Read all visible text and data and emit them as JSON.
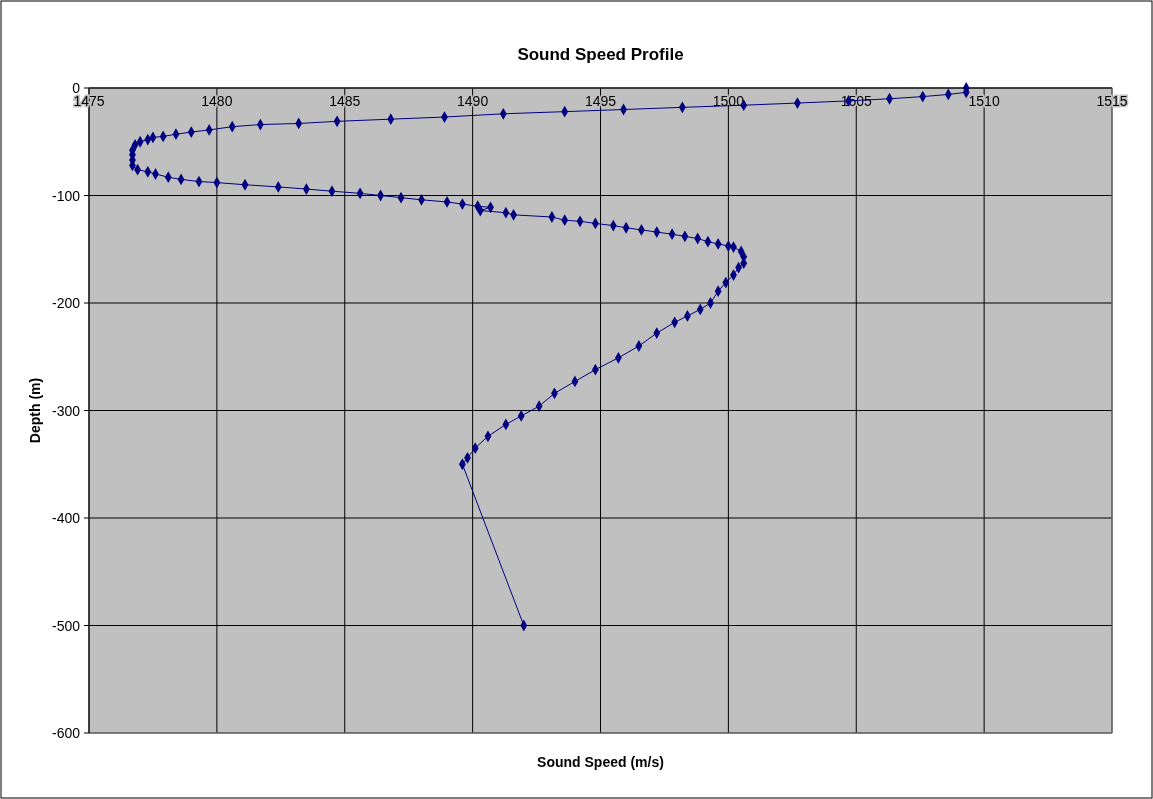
{
  "chart_data": {
    "type": "line",
    "title": "Sound Speed Profile",
    "xlabel": "Sound Speed (m/s)",
    "ylabel": "Depth (m)",
    "xlim": [
      1475,
      1515
    ],
    "xticks": [
      1475,
      1480,
      1485,
      1490,
      1495,
      1500,
      1505,
      1510,
      1515
    ],
    "ylim": [
      -600,
      0
    ],
    "yticks": [
      -600,
      -500,
      -400,
      -300,
      -200,
      -100,
      0
    ],
    "grid": true,
    "marker": "diamond",
    "line_style": "solid",
    "series": [
      {
        "color": "#000080",
        "x": [
          1509.3,
          1509.3,
          1508.6,
          1507.6,
          1506.3,
          1504.7,
          1502.7,
          1500.6,
          1498.2,
          1495.9,
          1493.6,
          1491.2,
          1488.9,
          1486.8,
          1484.7,
          1483.2,
          1481.7,
          1480.6,
          1479.7,
          1479.0,
          1478.4,
          1477.9,
          1477.5,
          1477.3,
          1477.0,
          1476.8,
          1476.7,
          1476.7,
          1476.7,
          1476.7,
          1476.9,
          1477.3,
          1477.6,
          1478.1,
          1478.6,
          1479.3,
          1480.0,
          1481.1,
          1482.4,
          1483.5,
          1484.5,
          1485.6,
          1486.4,
          1487.2,
          1488.0,
          1489.0,
          1489.6,
          1490.2,
          1490.7,
          1490.3,
          1491.3,
          1491.6,
          1493.1,
          1493.6,
          1494.2,
          1494.8,
          1495.5,
          1496.0,
          1496.6,
          1497.2,
          1497.8,
          1498.3,
          1498.8,
          1499.2,
          1499.6,
          1500.0,
          1500.2,
          1500.5,
          1500.6,
          1500.6,
          1500.4,
          1500.2,
          1499.9,
          1499.6,
          1499.3,
          1498.9,
          1498.4,
          1497.9,
          1497.2,
          1496.5,
          1495.7,
          1494.8,
          1494.0,
          1493.2,
          1492.6,
          1491.9,
          1491.3,
          1490.6,
          1490.1,
          1489.8,
          1489.6,
          1492.0
        ],
        "values": [
          0,
          -4,
          -6,
          -8,
          -10,
          -12,
          -14,
          -16,
          -18,
          -20,
          -22,
          -24,
          -27,
          -29,
          -31,
          -33,
          -34,
          -36,
          -39,
          -41,
          -43,
          -45,
          -46,
          -48,
          -50,
          -53,
          -58,
          -62,
          -67,
          -72,
          -76,
          -78,
          -80,
          -83,
          -85,
          -87,
          -88,
          -90,
          -92,
          -94,
          -96,
          -98,
          -100,
          -102,
          -104,
          -106,
          -108,
          -110,
          -111,
          -114,
          -116,
          -118,
          -120,
          -123,
          -124,
          -126,
          -128,
          -130,
          -132,
          -134,
          -136,
          -138,
          -140,
          -143,
          -145,
          -147,
          -148,
          -152,
          -157,
          -163,
          -167,
          -174,
          -181,
          -189,
          -200,
          -206,
          -212,
          -218,
          -228,
          -240,
          -251,
          -262,
          -273,
          -284,
          -296,
          -305,
          -313,
          -324,
          -335,
          -344,
          -350,
          -500
        ]
      }
    ]
  }
}
